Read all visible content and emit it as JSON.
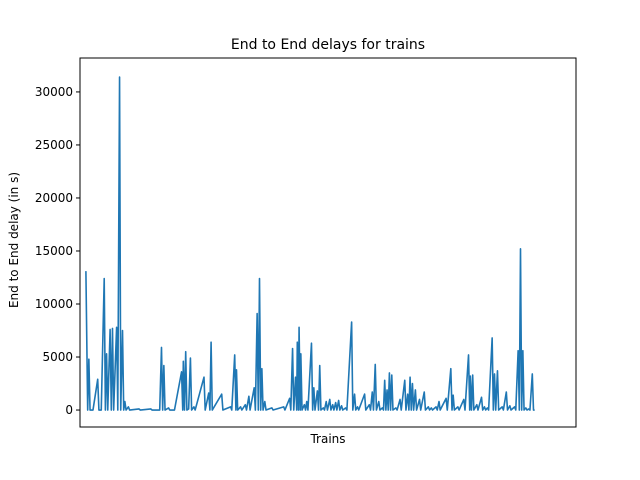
{
  "chart_data": {
    "type": "line",
    "title": "End to End delays for trains",
    "xlabel": "Trains",
    "ylabel": "End to End delay (in s)",
    "ylim": [
      -1600,
      33200
    ],
    "xlim": [
      -10,
      830
    ],
    "yticks": [
      0,
      5000,
      10000,
      15000,
      20000,
      25000,
      30000
    ],
    "xticks_visible": false,
    "grid": false,
    "series": [
      {
        "color": "#1f77b4",
        "points": [
          [
            0,
            13100
          ],
          [
            3,
            0
          ],
          [
            5,
            4800
          ],
          [
            7,
            0
          ],
          [
            12,
            0
          ],
          [
            20,
            2900
          ],
          [
            22,
            0
          ],
          [
            26,
            0
          ],
          [
            31,
            12400
          ],
          [
            33,
            0
          ],
          [
            35,
            5300
          ],
          [
            37,
            0
          ],
          [
            41,
            7600
          ],
          [
            43,
            0
          ],
          [
            45,
            7700
          ],
          [
            47,
            0
          ],
          [
            52,
            7800
          ],
          [
            54,
            0
          ],
          [
            57,
            31400
          ],
          [
            59,
            0
          ],
          [
            62,
            7500
          ],
          [
            64,
            0
          ],
          [
            66,
            800
          ],
          [
            68,
            0
          ],
          [
            72,
            300
          ],
          [
            74,
            0
          ],
          [
            90,
            100
          ],
          [
            92,
            0
          ],
          [
            110,
            100
          ],
          [
            112,
            0
          ],
          [
            125,
            0
          ],
          [
            128,
            5900
          ],
          [
            130,
            0
          ],
          [
            132,
            4200
          ],
          [
            134,
            0
          ],
          [
            140,
            200
          ],
          [
            142,
            0
          ],
          [
            150,
            0
          ],
          [
            162,
            3600
          ],
          [
            164,
            0
          ],
          [
            165,
            4600
          ],
          [
            167,
            0
          ],
          [
            169,
            5500
          ],
          [
            171,
            0
          ],
          [
            174,
            100
          ],
          [
            177,
            4900
          ],
          [
            179,
            0
          ],
          [
            183,
            300
          ],
          [
            185,
            0
          ],
          [
            200,
            3100
          ],
          [
            202,
            0
          ],
          [
            208,
            1600
          ],
          [
            210,
            0
          ],
          [
            212,
            6400
          ],
          [
            214,
            0
          ],
          [
            230,
            1500
          ],
          [
            232,
            0
          ],
          [
            245,
            300
          ],
          [
            247,
            0
          ],
          [
            252,
            5200
          ],
          [
            254,
            0
          ],
          [
            255,
            3800
          ],
          [
            257,
            0
          ],
          [
            262,
            300
          ],
          [
            264,
            0
          ],
          [
            270,
            500
          ],
          [
            272,
            0
          ],
          [
            276,
            1300
          ],
          [
            278,
            0
          ],
          [
            285,
            2100
          ],
          [
            287,
            0
          ],
          [
            290,
            9100
          ],
          [
            292,
            0
          ],
          [
            294,
            12400
          ],
          [
            296,
            0
          ],
          [
            298,
            3900
          ],
          [
            300,
            0
          ],
          [
            303,
            800
          ],
          [
            305,
            0
          ],
          [
            315,
            200
          ],
          [
            317,
            0
          ],
          [
            335,
            300
          ],
          [
            337,
            0
          ],
          [
            345,
            1100
          ],
          [
            347,
            0
          ],
          [
            350,
            5800
          ],
          [
            352,
            0
          ],
          [
            355,
            3100
          ],
          [
            357,
            0
          ],
          [
            358,
            6400
          ],
          [
            360,
            0
          ],
          [
            361,
            7800
          ],
          [
            363,
            0
          ],
          [
            364,
            5300
          ],
          [
            366,
            0
          ],
          [
            370,
            500
          ],
          [
            372,
            0
          ],
          [
            374,
            800
          ],
          [
            376,
            0
          ],
          [
            382,
            6300
          ],
          [
            384,
            0
          ],
          [
            386,
            2100
          ],
          [
            388,
            0
          ],
          [
            392,
            1800
          ],
          [
            394,
            0
          ],
          [
            396,
            4200
          ],
          [
            398,
            0
          ],
          [
            402,
            200
          ],
          [
            404,
            0
          ],
          [
            407,
            800
          ],
          [
            409,
            0
          ],
          [
            413,
            1000
          ],
          [
            415,
            0
          ],
          [
            418,
            500
          ],
          [
            420,
            0
          ],
          [
            423,
            700
          ],
          [
            425,
            0
          ],
          [
            428,
            900
          ],
          [
            430,
            0
          ],
          [
            433,
            400
          ],
          [
            435,
            0
          ],
          [
            440,
            200
          ],
          [
            442,
            0
          ],
          [
            450,
            8300
          ],
          [
            452,
            0
          ],
          [
            455,
            1500
          ],
          [
            457,
            0
          ],
          [
            460,
            300
          ],
          [
            462,
            0
          ],
          [
            472,
            1500
          ],
          [
            474,
            0
          ],
          [
            480,
            500
          ],
          [
            482,
            0
          ],
          [
            485,
            1700
          ],
          [
            487,
            0
          ],
          [
            490,
            4300
          ],
          [
            492,
            0
          ],
          [
            496,
            800
          ],
          [
            498,
            0
          ],
          [
            502,
            200
          ],
          [
            504,
            0
          ],
          [
            506,
            2800
          ],
          [
            508,
            0
          ],
          [
            510,
            1900
          ],
          [
            512,
            0
          ],
          [
            514,
            3500
          ],
          [
            516,
            0
          ],
          [
            518,
            3300
          ],
          [
            520,
            0
          ],
          [
            525,
            200
          ],
          [
            527,
            0
          ],
          [
            532,
            1000
          ],
          [
            534,
            0
          ],
          [
            540,
            2800
          ],
          [
            542,
            0
          ],
          [
            545,
            1500
          ],
          [
            547,
            0
          ],
          [
            549,
            3100
          ],
          [
            551,
            0
          ],
          [
            553,
            2500
          ],
          [
            555,
            0
          ],
          [
            558,
            1900
          ],
          [
            560,
            0
          ],
          [
            565,
            1000
          ],
          [
            567,
            0
          ],
          [
            573,
            1700
          ],
          [
            575,
            0
          ],
          [
            580,
            300
          ],
          [
            582,
            0
          ],
          [
            585,
            200
          ],
          [
            587,
            0
          ],
          [
            593,
            300
          ],
          [
            595,
            0
          ],
          [
            598,
            800
          ],
          [
            600,
            0
          ],
          [
            610,
            1100
          ],
          [
            612,
            0
          ],
          [
            618,
            3900
          ],
          [
            620,
            0
          ],
          [
            622,
            1400
          ],
          [
            624,
            0
          ],
          [
            630,
            300
          ],
          [
            632,
            0
          ],
          [
            640,
            1000
          ],
          [
            642,
            0
          ],
          [
            648,
            5200
          ],
          [
            650,
            0
          ],
          [
            651,
            3200
          ],
          [
            653,
            0
          ],
          [
            655,
            3300
          ],
          [
            657,
            0
          ],
          [
            662,
            500
          ],
          [
            664,
            0
          ],
          [
            670,
            1200
          ],
          [
            672,
            0
          ],
          [
            675,
            300
          ],
          [
            677,
            0
          ],
          [
            680,
            200
          ],
          [
            682,
            0
          ],
          [
            688,
            6800
          ],
          [
            690,
            0
          ],
          [
            692,
            3400
          ],
          [
            694,
            0
          ],
          [
            697,
            3700
          ],
          [
            699,
            0
          ],
          [
            705,
            300
          ],
          [
            707,
            0
          ],
          [
            712,
            1700
          ],
          [
            714,
            0
          ],
          [
            718,
            400
          ],
          [
            720,
            0
          ],
          [
            726,
            300
          ],
          [
            728,
            0
          ],
          [
            732,
            5600
          ],
          [
            734,
            0
          ],
          [
            736,
            15200
          ],
          [
            738,
            0
          ],
          [
            740,
            5600
          ],
          [
            742,
            0
          ],
          [
            745,
            200
          ],
          [
            747,
            0
          ],
          [
            750,
            100
          ],
          [
            752,
            0
          ],
          [
            756,
            3400
          ],
          [
            758,
            0
          ],
          [
            760,
            0
          ]
        ]
      }
    ]
  }
}
